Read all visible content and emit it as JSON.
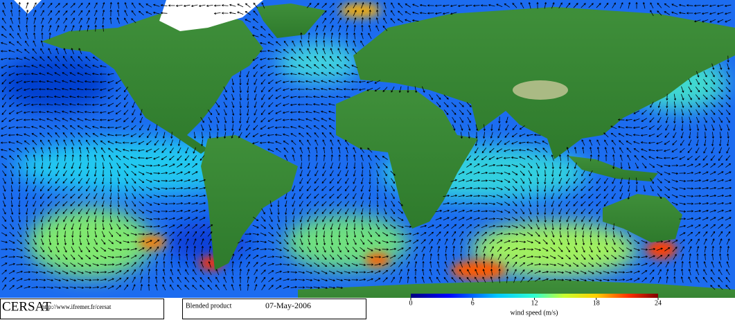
{
  "logo": "CERSAT",
  "url": "http://www.ifremer.fr/cersat",
  "product": "Blended product",
  "date": "07-May-2006",
  "colorbar": {
    "label": "wind speed (m/s)",
    "range": [
      0,
      24
    ],
    "ticks": [
      0,
      6,
      12,
      18,
      24
    ]
  }
}
